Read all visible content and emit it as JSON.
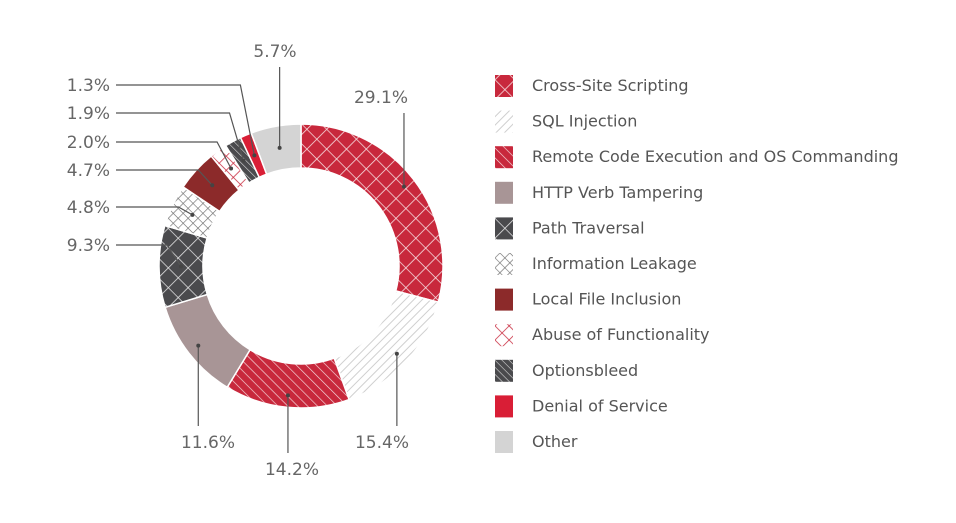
{
  "chart_data": {
    "type": "pie",
    "style": "donut",
    "title": "",
    "legend_position": "right",
    "categories": [
      "Cross-Site Scripting",
      "SQL Injection",
      "Remote Code Execution and OS Commanding",
      "HTTP Verb Tampering",
      "Path Traversal",
      "Information Leakage",
      "Local File Inclusion",
      "Abuse of Functionality",
      "Optionsbleed",
      "Denial of Service",
      "Other"
    ],
    "values": [
      29.1,
      15.4,
      14.2,
      11.6,
      9.3,
      4.8,
      4.7,
      2.0,
      1.9,
      1.3,
      5.7
    ],
    "value_labels": [
      "29.1%",
      "15.4%",
      "14.2%",
      "11.6%",
      "9.3%",
      "4.8%",
      "4.7%",
      "2.0%",
      "1.9%",
      "1.3%",
      "5.7%"
    ],
    "colors": [
      "#c8283c",
      "#d9d9d9",
      "#c8283c",
      "#a89596",
      "#4a4a4d",
      "#9a9a9a",
      "#8c2a2a",
      "#c8283c",
      "#4a4a4d",
      "#d91e36",
      "#d4d4d4"
    ],
    "fill_styles": [
      "crosshatch",
      "diagonal-light",
      "diagonal",
      "solid",
      "crosshatch",
      "crosshatch-fine",
      "solid",
      "crosshatch-outline",
      "diagonal",
      "solid",
      "solid"
    ]
  }
}
